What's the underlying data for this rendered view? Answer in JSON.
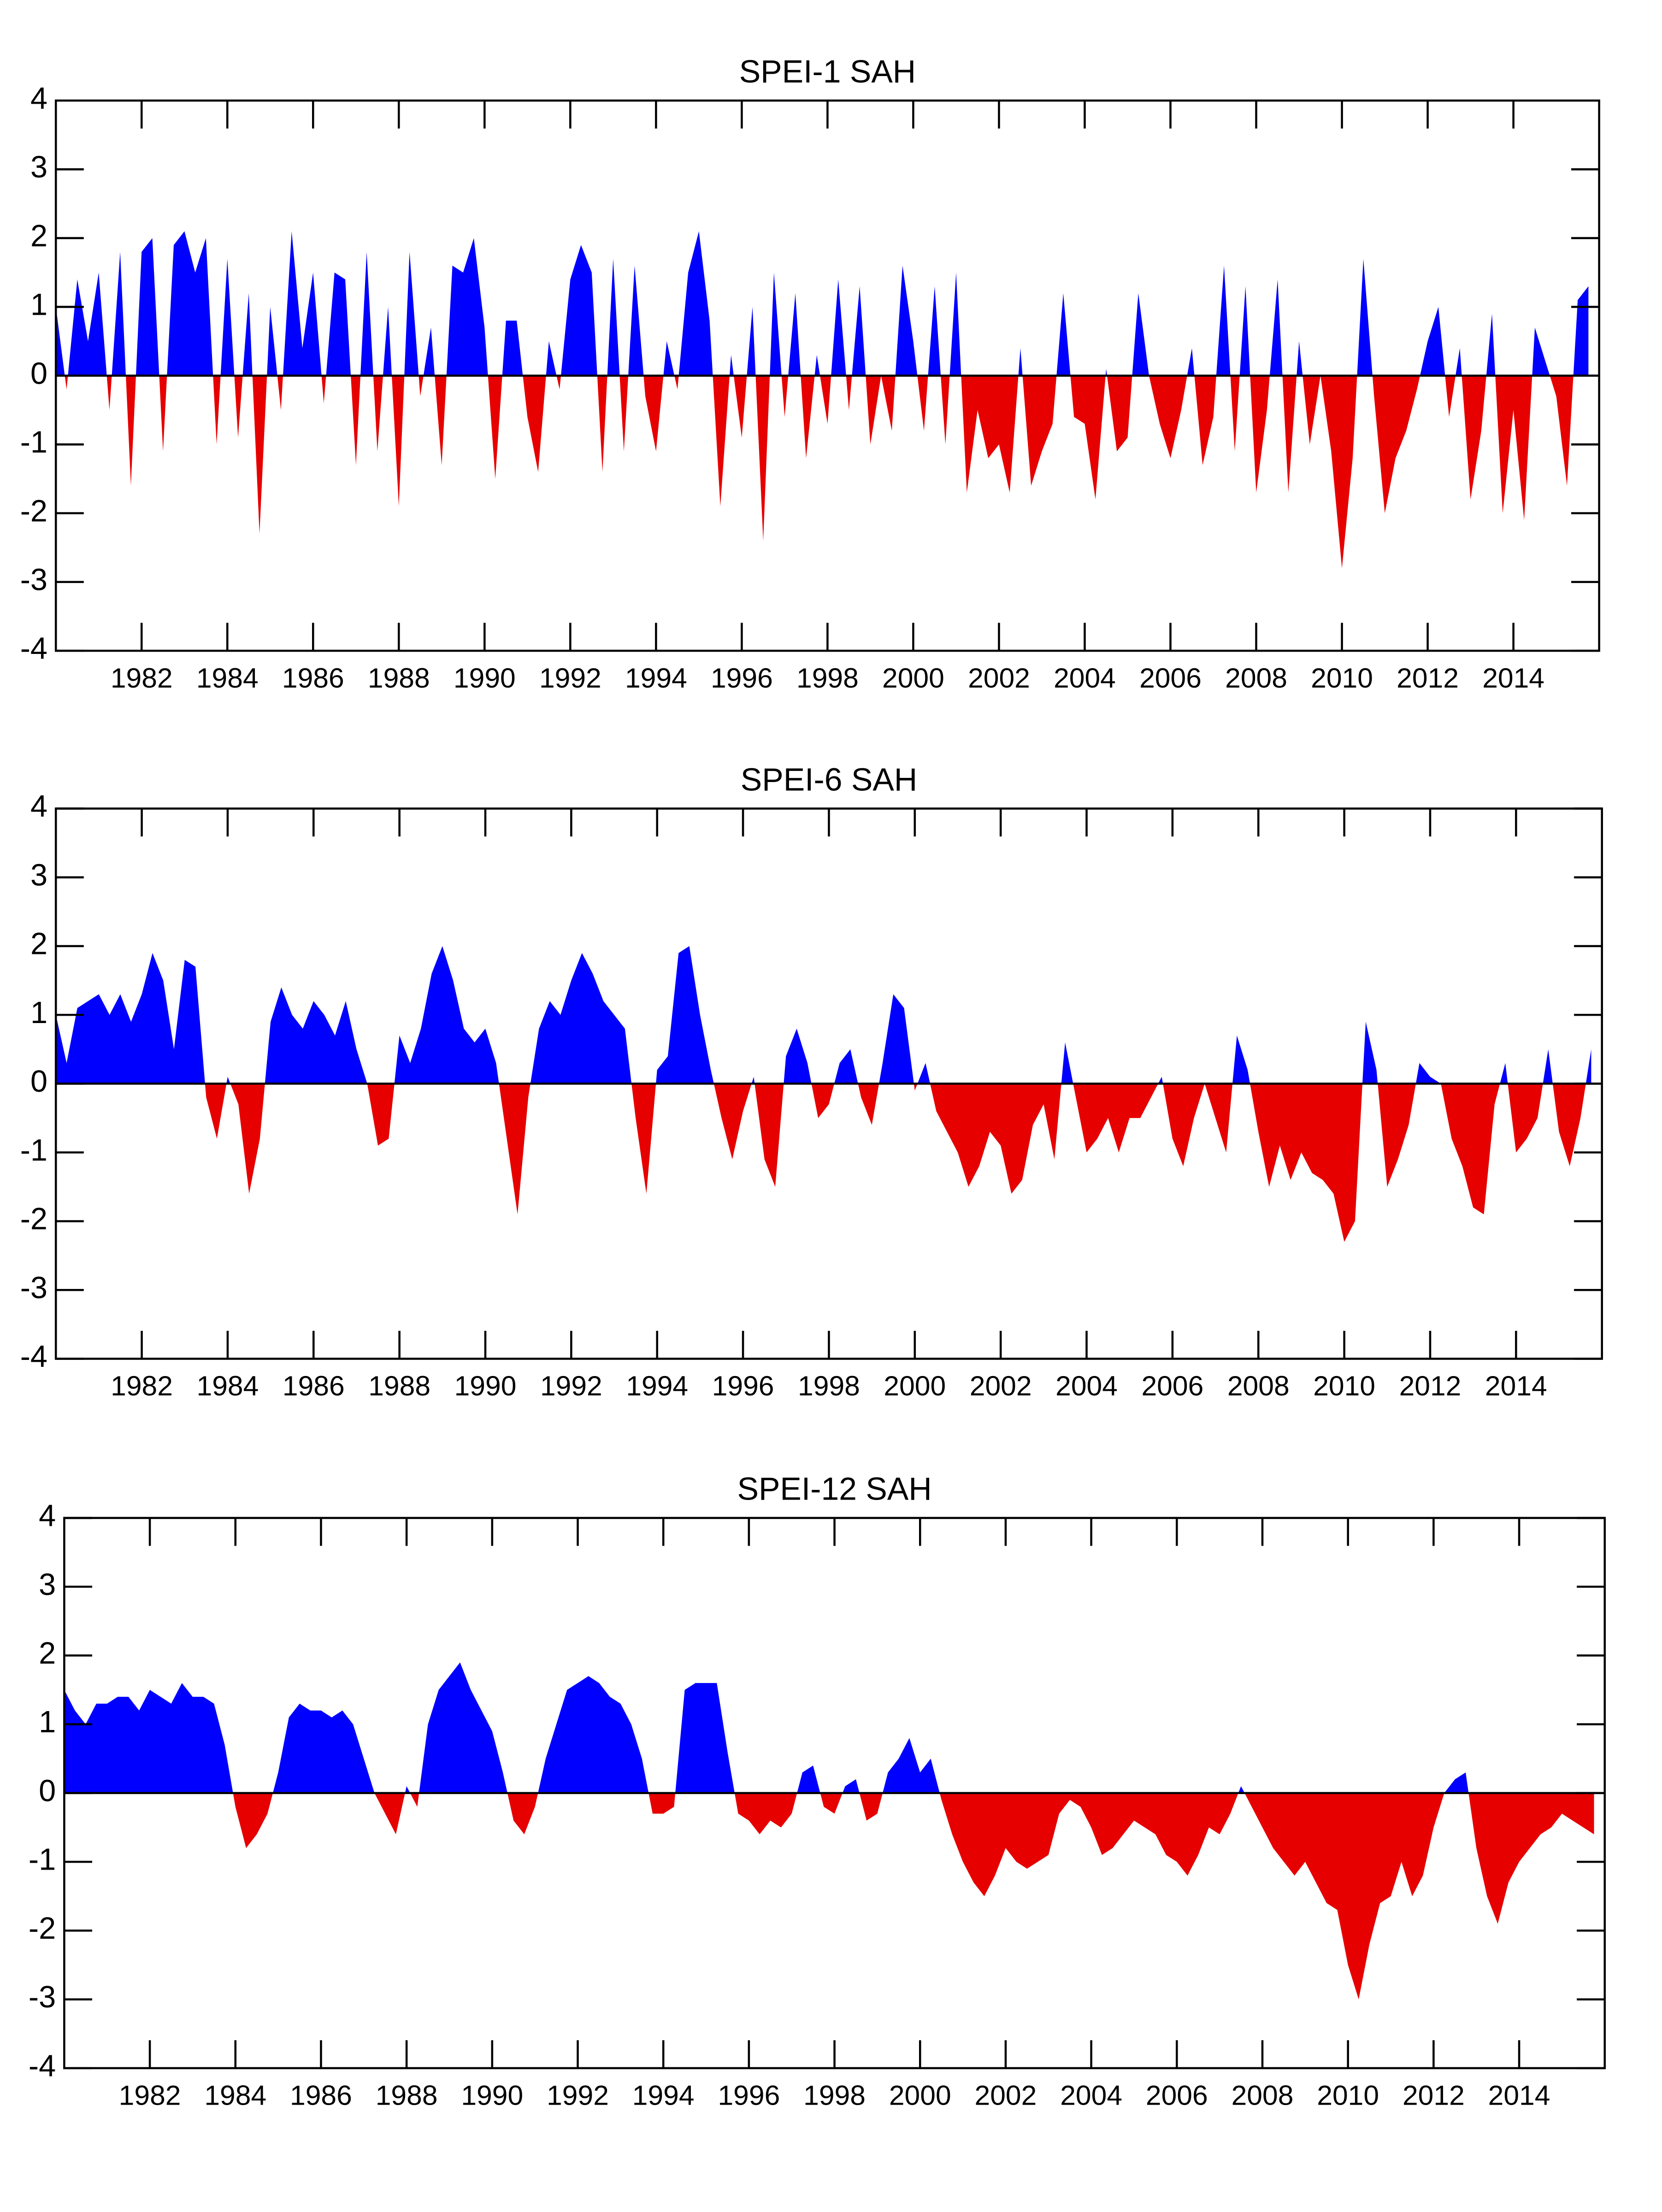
{
  "chart_data": [
    {
      "type": "area",
      "title": "SPEI-1 SAH",
      "positive_color": "#0000ff",
      "negative_color": "#e60000",
      "xlim": [
        1980,
        2016
      ],
      "xticks": [
        1982,
        1984,
        1986,
        1988,
        1990,
        1992,
        1994,
        1996,
        1998,
        2000,
        2002,
        2004,
        2006,
        2008,
        2010,
        2012,
        2014
      ],
      "ylim": [
        -4,
        4
      ],
      "yticks": [
        -4,
        -3,
        -2,
        -1,
        0,
        1,
        2,
        3,
        4
      ],
      "x": [
        1980,
        1980.25,
        1980.5,
        1980.75,
        1981,
        1981.25,
        1981.5,
        1981.75,
        1982,
        1982.25,
        1982.5,
        1982.75,
        1983,
        1983.25,
        1983.5,
        1983.75,
        1984,
        1984.25,
        1984.5,
        1984.75,
        1985,
        1985.25,
        1985.5,
        1985.75,
        1986,
        1986.25,
        1986.5,
        1986.75,
        1987,
        1987.25,
        1987.5,
        1987.75,
        1988,
        1988.25,
        1988.5,
        1988.75,
        1989,
        1989.25,
        1989.5,
        1989.75,
        1990,
        1990.25,
        1990.5,
        1990.75,
        1991,
        1991.25,
        1991.5,
        1991.75,
        1992,
        1992.25,
        1992.5,
        1992.75,
        1993,
        1993.25,
        1993.5,
        1993.75,
        1994,
        1994.25,
        1994.5,
        1994.75,
        1995,
        1995.25,
        1995.5,
        1995.75,
        1996,
        1996.25,
        1996.5,
        1996.75,
        1997,
        1997.25,
        1997.5,
        1997.75,
        1998,
        1998.25,
        1998.5,
        1998.75,
        1999,
        1999.25,
        1999.5,
        1999.75,
        2000,
        2000.25,
        2000.5,
        2000.75,
        2001,
        2001.25,
        2001.5,
        2001.75,
        2002,
        2002.25,
        2002.5,
        2002.75,
        2003,
        2003.25,
        2003.5,
        2003.75,
        2004,
        2004.25,
        2004.5,
        2004.75,
        2005,
        2005.25,
        2005.5,
        2005.75,
        2006,
        2006.25,
        2006.5,
        2006.75,
        2007,
        2007.25,
        2007.5,
        2007.75,
        2008,
        2008.25,
        2008.5,
        2008.75,
        2009,
        2009.25,
        2009.5,
        2009.75,
        2010,
        2010.25,
        2010.5,
        2010.75,
        2011,
        2011.25,
        2011.5,
        2011.75,
        2012,
        2012.25,
        2012.5,
        2012.75,
        2013,
        2013.25,
        2013.5,
        2013.75,
        2014,
        2014.25,
        2014.5,
        2014.75,
        2015,
        2015.25,
        2015.5,
        2015.75
      ],
      "values": [
        1.0,
        -0.2,
        1.4,
        0.5,
        1.5,
        -0.5,
        1.8,
        -1.6,
        1.8,
        2.0,
        -1.1,
        1.9,
        2.1,
        1.5,
        2.0,
        -1.0,
        1.7,
        -0.9,
        1.2,
        -2.3,
        1.0,
        -0.5,
        2.1,
        0.4,
        1.5,
        -0.4,
        1.5,
        1.4,
        -1.3,
        1.8,
        -1.1,
        1.0,
        -1.9,
        1.8,
        -0.3,
        0.7,
        -1.3,
        1.6,
        1.5,
        2.0,
        0.7,
        -1.5,
        0.8,
        0.8,
        -0.6,
        -1.4,
        0.5,
        -0.2,
        1.4,
        1.9,
        1.5,
        -1.4,
        1.7,
        -1.1,
        1.6,
        -0.3,
        -1.1,
        0.5,
        -0.2,
        1.5,
        2.1,
        0.8,
        -1.9,
        0.3,
        -0.9,
        1.0,
        -2.4,
        1.5,
        -0.6,
        1.2,
        -1.2,
        0.3,
        -0.7,
        1.4,
        -0.5,
        1.3,
        -1.0,
        0.0,
        -0.8,
        1.6,
        0.5,
        -0.8,
        1.3,
        -1.0,
        1.5,
        -1.7,
        -0.5,
        -1.2,
        -1.0,
        -1.7,
        0.4,
        -1.6,
        -1.1,
        -0.7,
        1.2,
        -0.6,
        -0.7,
        -1.8,
        0.1,
        -1.1,
        -0.9,
        1.2,
        0.0,
        -0.7,
        -1.2,
        -0.5,
        0.4,
        -1.3,
        -0.6,
        1.6,
        -1.1,
        1.3,
        -1.7,
        -0.5,
        1.4,
        -1.7,
        0.5,
        -1.0,
        0.0,
        -1.1,
        -2.8,
        -1.2,
        1.7,
        -0.3,
        -2.0,
        -1.2,
        -0.8,
        -0.2,
        0.5,
        1.0,
        -0.6,
        0.4,
        -1.8,
        -0.8,
        0.9,
        -2.0,
        -0.5,
        -2.1,
        0.7,
        0.2,
        -0.3,
        -1.6,
        1.1,
        1.3
      ]
    },
    {
      "type": "area",
      "title": "SPEI-6 SAH",
      "positive_color": "#0000ff",
      "negative_color": "#e60000",
      "xlim": [
        1980,
        2016
      ],
      "xticks": [
        1982,
        1984,
        1986,
        1988,
        1990,
        1992,
        1994,
        1996,
        1998,
        2000,
        2002,
        2004,
        2006,
        2008,
        2010,
        2012,
        2014
      ],
      "ylim": [
        -4,
        4
      ],
      "yticks": [
        -4,
        -3,
        -2,
        -1,
        0,
        1,
        2,
        3,
        4
      ],
      "x": [
        1980,
        1980.25,
        1980.5,
        1980.75,
        1981,
        1981.25,
        1981.5,
        1981.75,
        1982,
        1982.25,
        1982.5,
        1982.75,
        1983,
        1983.25,
        1983.5,
        1983.75,
        1984,
        1984.25,
        1984.5,
        1984.75,
        1985,
        1985.25,
        1985.5,
        1985.75,
        1986,
        1986.25,
        1986.5,
        1986.75,
        1987,
        1987.25,
        1987.5,
        1987.75,
        1988,
        1988.25,
        1988.5,
        1988.75,
        1989,
        1989.25,
        1989.5,
        1989.75,
        1990,
        1990.25,
        1990.5,
        1990.75,
        1991,
        1991.25,
        1991.5,
        1991.75,
        1992,
        1992.25,
        1992.5,
        1992.75,
        1993,
        1993.25,
        1993.5,
        1993.75,
        1994,
        1994.25,
        1994.5,
        1994.75,
        1995,
        1995.25,
        1995.5,
        1995.75,
        1996,
        1996.25,
        1996.5,
        1996.75,
        1997,
        1997.25,
        1997.5,
        1997.75,
        1998,
        1998.25,
        1998.5,
        1998.75,
        1999,
        1999.25,
        1999.5,
        1999.75,
        2000,
        2000.25,
        2000.5,
        2000.75,
        2001,
        2001.25,
        2001.5,
        2001.75,
        2002,
        2002.25,
        2002.5,
        2002.75,
        2003,
        2003.25,
        2003.5,
        2003.75,
        2004,
        2004.25,
        2004.5,
        2004.75,
        2005,
        2005.25,
        2005.5,
        2005.75,
        2006,
        2006.25,
        2006.5,
        2006.75,
        2007,
        2007.25,
        2007.5,
        2007.75,
        2008,
        2008.25,
        2008.5,
        2008.75,
        2009,
        2009.25,
        2009.5,
        2009.75,
        2010,
        2010.25,
        2010.5,
        2010.75,
        2011,
        2011.25,
        2011.5,
        2011.75,
        2012,
        2012.25,
        2012.5,
        2012.75,
        2013,
        2013.25,
        2013.5,
        2013.75,
        2014,
        2014.25,
        2014.5,
        2014.75,
        2015,
        2015.25,
        2015.5,
        2015.75
      ],
      "values": [
        1.0,
        0.3,
        1.1,
        1.2,
        1.3,
        1.0,
        1.3,
        0.9,
        1.3,
        1.9,
        1.5,
        0.5,
        1.8,
        1.7,
        -0.2,
        -0.8,
        0.1,
        -0.3,
        -1.6,
        -0.8,
        0.9,
        1.4,
        1.0,
        0.8,
        1.2,
        1.0,
        0.7,
        1.2,
        0.5,
        0.0,
        -0.9,
        -0.8,
        0.7,
        0.3,
        0.8,
        1.6,
        2.0,
        1.5,
        0.8,
        0.6,
        0.8,
        0.3,
        -0.8,
        -1.9,
        -0.2,
        0.8,
        1.2,
        1.0,
        1.5,
        1.9,
        1.6,
        1.2,
        1.0,
        0.8,
        -0.5,
        -1.6,
        0.2,
        0.4,
        1.9,
        2.0,
        1.0,
        0.2,
        -0.5,
        -1.1,
        -0.4,
        0.1,
        -1.1,
        -1.5,
        0.4,
        0.8,
        0.3,
        -0.5,
        -0.3,
        0.3,
        0.5,
        -0.2,
        -0.6,
        0.3,
        1.3,
        1.1,
        -0.1,
        0.3,
        -0.4,
        -0.7,
        -1.0,
        -1.5,
        -1.2,
        -0.7,
        -0.9,
        -1.6,
        -1.4,
        -0.6,
        -0.3,
        -1.1,
        0.6,
        -0.2,
        -1.0,
        -0.8,
        -0.5,
        -1.0,
        -0.5,
        -0.5,
        -0.2,
        0.1,
        -0.8,
        -1.2,
        -0.5,
        0.0,
        -0.5,
        -1.0,
        0.7,
        0.2,
        -0.7,
        -1.5,
        -0.9,
        -1.4,
        -1.0,
        -1.3,
        -1.4,
        -1.6,
        -2.3,
        -2.0,
        0.9,
        0.2,
        -1.5,
        -1.1,
        -0.6,
        0.3,
        0.1,
        0.0,
        -0.8,
        -1.2,
        -1.8,
        -1.9,
        -0.3,
        0.3,
        -1.0,
        -0.8,
        -0.5,
        0.5,
        -0.7,
        -1.2,
        -0.5,
        0.5
      ]
    },
    {
      "type": "area",
      "title": "SPEI-12 SAH",
      "positive_color": "#0000ff",
      "negative_color": "#e60000",
      "xlim": [
        1980,
        2016
      ],
      "xticks": [
        1982,
        1984,
        1986,
        1988,
        1990,
        1992,
        1994,
        1996,
        1998,
        2000,
        2002,
        2004,
        2006,
        2008,
        2010,
        2012,
        2014
      ],
      "ylim": [
        -4,
        4
      ],
      "yticks": [
        -4,
        -3,
        -2,
        -1,
        0,
        1,
        2,
        3,
        4
      ],
      "x": [
        1980,
        1980.25,
        1980.5,
        1980.75,
        1981,
        1981.25,
        1981.5,
        1981.75,
        1982,
        1982.25,
        1982.5,
        1982.75,
        1983,
        1983.25,
        1983.5,
        1983.75,
        1984,
        1984.25,
        1984.5,
        1984.75,
        1985,
        1985.25,
        1985.5,
        1985.75,
        1986,
        1986.25,
        1986.5,
        1986.75,
        1987,
        1987.25,
        1987.5,
        1987.75,
        1988,
        1988.25,
        1988.5,
        1988.75,
        1989,
        1989.25,
        1989.5,
        1989.75,
        1990,
        1990.25,
        1990.5,
        1990.75,
        1991,
        1991.25,
        1991.5,
        1991.75,
        1992,
        1992.25,
        1992.5,
        1992.75,
        1993,
        1993.25,
        1993.5,
        1993.75,
        1994,
        1994.25,
        1994.5,
        1994.75,
        1995,
        1995.25,
        1995.5,
        1995.75,
        1996,
        1996.25,
        1996.5,
        1996.75,
        1997,
        1997.25,
        1997.5,
        1997.75,
        1998,
        1998.25,
        1998.5,
        1998.75,
        1999,
        1999.25,
        1999.5,
        1999.75,
        2000,
        2000.25,
        2000.5,
        2000.75,
        2001,
        2001.25,
        2001.5,
        2001.75,
        2002,
        2002.25,
        2002.5,
        2002.75,
        2003,
        2003.25,
        2003.5,
        2003.75,
        2004,
        2004.25,
        2004.5,
        2004.75,
        2005,
        2005.25,
        2005.5,
        2005.75,
        2006,
        2006.25,
        2006.5,
        2006.75,
        2007,
        2007.25,
        2007.5,
        2007.75,
        2008,
        2008.25,
        2008.5,
        2008.75,
        2009,
        2009.25,
        2009.5,
        2009.75,
        2010,
        2010.25,
        2010.5,
        2010.75,
        2011,
        2011.25,
        2011.5,
        2011.75,
        2012,
        2012.25,
        2012.5,
        2012.75,
        2013,
        2013.25,
        2013.5,
        2013.75,
        2014,
        2014.25,
        2014.5,
        2014.75,
        2015,
        2015.25,
        2015.5,
        2015.75
      ],
      "values": [
        1.5,
        1.2,
        1.0,
        1.3,
        1.3,
        1.4,
        1.4,
        1.2,
        1.5,
        1.4,
        1.3,
        1.6,
        1.4,
        1.4,
        1.3,
        0.7,
        -0.2,
        -0.8,
        -0.6,
        -0.3,
        0.3,
        1.1,
        1.3,
        1.2,
        1.2,
        1.1,
        1.2,
        1.0,
        0.5,
        0.0,
        -0.3,
        -0.6,
        0.1,
        -0.2,
        1.0,
        1.5,
        1.7,
        1.9,
        1.5,
        1.2,
        0.9,
        0.3,
        -0.4,
        -0.6,
        -0.2,
        0.5,
        1.0,
        1.5,
        1.6,
        1.7,
        1.6,
        1.4,
        1.3,
        1.0,
        0.5,
        -0.3,
        -0.3,
        -0.2,
        1.5,
        1.6,
        1.6,
        1.6,
        0.6,
        -0.3,
        -0.4,
        -0.6,
        -0.4,
        -0.5,
        -0.3,
        0.3,
        0.4,
        -0.2,
        -0.3,
        0.1,
        0.2,
        -0.4,
        -0.3,
        0.3,
        0.5,
        0.8,
        0.3,
        0.5,
        -0.1,
        -0.6,
        -1.0,
        -1.3,
        -1.5,
        -1.2,
        -0.8,
        -1.0,
        -1.1,
        -1.0,
        -0.9,
        -0.3,
        -0.1,
        -0.2,
        -0.5,
        -0.9,
        -0.8,
        -0.6,
        -0.4,
        -0.5,
        -0.6,
        -0.9,
        -1.0,
        -1.2,
        -0.9,
        -0.5,
        -0.6,
        -0.3,
        0.1,
        -0.2,
        -0.5,
        -0.8,
        -1.0,
        -1.2,
        -1.0,
        -1.3,
        -1.6,
        -1.7,
        -2.5,
        -3.0,
        -2.2,
        -1.6,
        -1.5,
        -1.0,
        -1.5,
        -1.2,
        -0.5,
        0.0,
        0.2,
        0.3,
        -0.8,
        -1.5,
        -1.9,
        -1.3,
        -1.0,
        -0.8,
        -0.6,
        -0.5,
        -0.3,
        -0.4,
        -0.5,
        -0.6
      ]
    }
  ]
}
